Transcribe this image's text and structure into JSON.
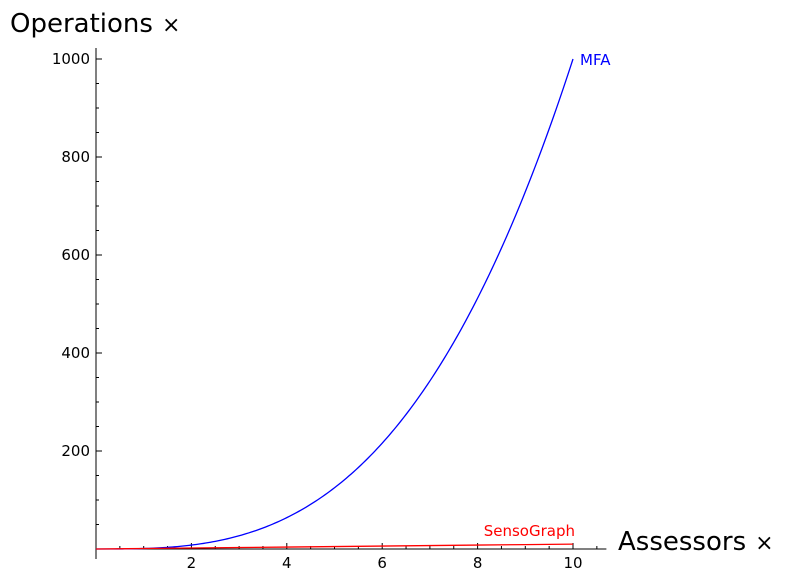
{
  "chart_data": {
    "type": "line",
    "xlabel": "Assessors",
    "ylabel": "Operations",
    "axis_label_suffix": "×",
    "xlim": [
      0,
      10.7
    ],
    "ylim": [
      0,
      1000
    ],
    "x_ticks": [
      2,
      4,
      6,
      8,
      10
    ],
    "y_ticks": [
      200,
      400,
      600,
      800,
      1000
    ],
    "x_minor_step": 0.5,
    "y_minor_step": 50,
    "grid": false,
    "legend": "inline labels at line ends",
    "series": [
      {
        "name": "MFA",
        "color": "#0000ff",
        "x": [
          0,
          0.5,
          1,
          1.5,
          2,
          2.5,
          3,
          3.5,
          4,
          4.5,
          5,
          5.5,
          6,
          6.5,
          7,
          7.5,
          8,
          8.5,
          9,
          9.5,
          10
        ],
        "y": [
          0,
          0.125,
          1,
          3.375,
          8,
          15.625,
          27,
          42.875,
          64,
          91.125,
          125,
          166.375,
          216,
          274.625,
          343,
          421.875,
          512,
          614.125,
          729,
          857.375,
          1000
        ]
      },
      {
        "name": "SensoGraph",
        "color": "#ff0000",
        "x": [
          0,
          1,
          2,
          3,
          4,
          5,
          6,
          7,
          8,
          9,
          10
        ],
        "y": [
          0,
          1,
          2,
          3,
          4,
          5,
          6,
          7,
          8,
          9,
          10
        ]
      }
    ]
  }
}
